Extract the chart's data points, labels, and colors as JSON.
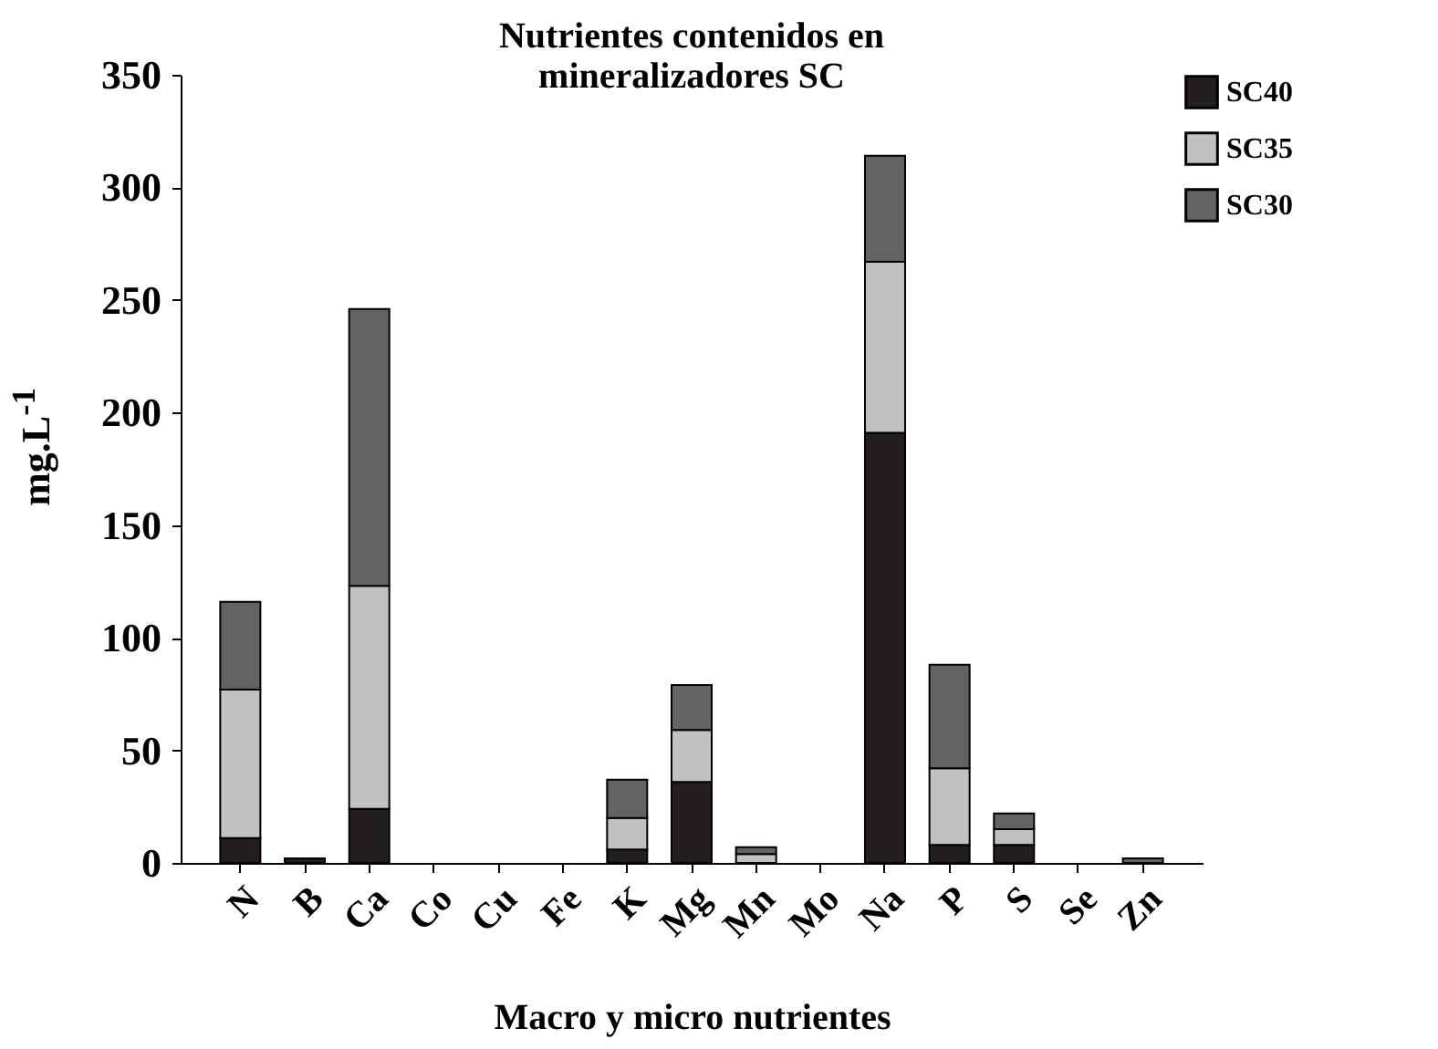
{
  "chart_data": {
    "type": "bar",
    "title": "Nutrientes contenidos en\nmineralizadores   SC",
    "xlabel": "Macro y micro nutrientes",
    "ylabel": "mg.L$^{-1}$",
    "categories": [
      "N",
      "B",
      "Ca",
      "Co",
      "Cu",
      "Fe",
      "K",
      "Mg",
      "Mn",
      "Mo",
      "Na",
      "P",
      "S",
      "Se",
      "Zn"
    ],
    "stacked": true,
    "legend": "right",
    "grid": false,
    "ylim": [
      0,
      350
    ],
    "yticks": [
      0,
      50,
      100,
      150,
      200,
      250,
      300,
      350
    ],
    "series": [
      {
        "name": "SC40",
        "color": "#231f20",
        "values": [
          11,
          2,
          24,
          0,
          0,
          0,
          6,
          36,
          null,
          0,
          191,
          8,
          8,
          0,
          null
        ]
      },
      {
        "name": "SC35",
        "color": "#c0c1c2",
        "values": [
          66,
          0,
          99,
          0,
          0,
          0,
          14,
          23,
          4,
          0,
          76,
          34,
          7,
          0,
          0
        ]
      },
      {
        "name": "SC30",
        "color": "#616364",
        "values": [
          39,
          0,
          123,
          0,
          0,
          0,
          17,
          20,
          3,
          0,
          47,
          46,
          7,
          0,
          2
        ]
      }
    ]
  }
}
